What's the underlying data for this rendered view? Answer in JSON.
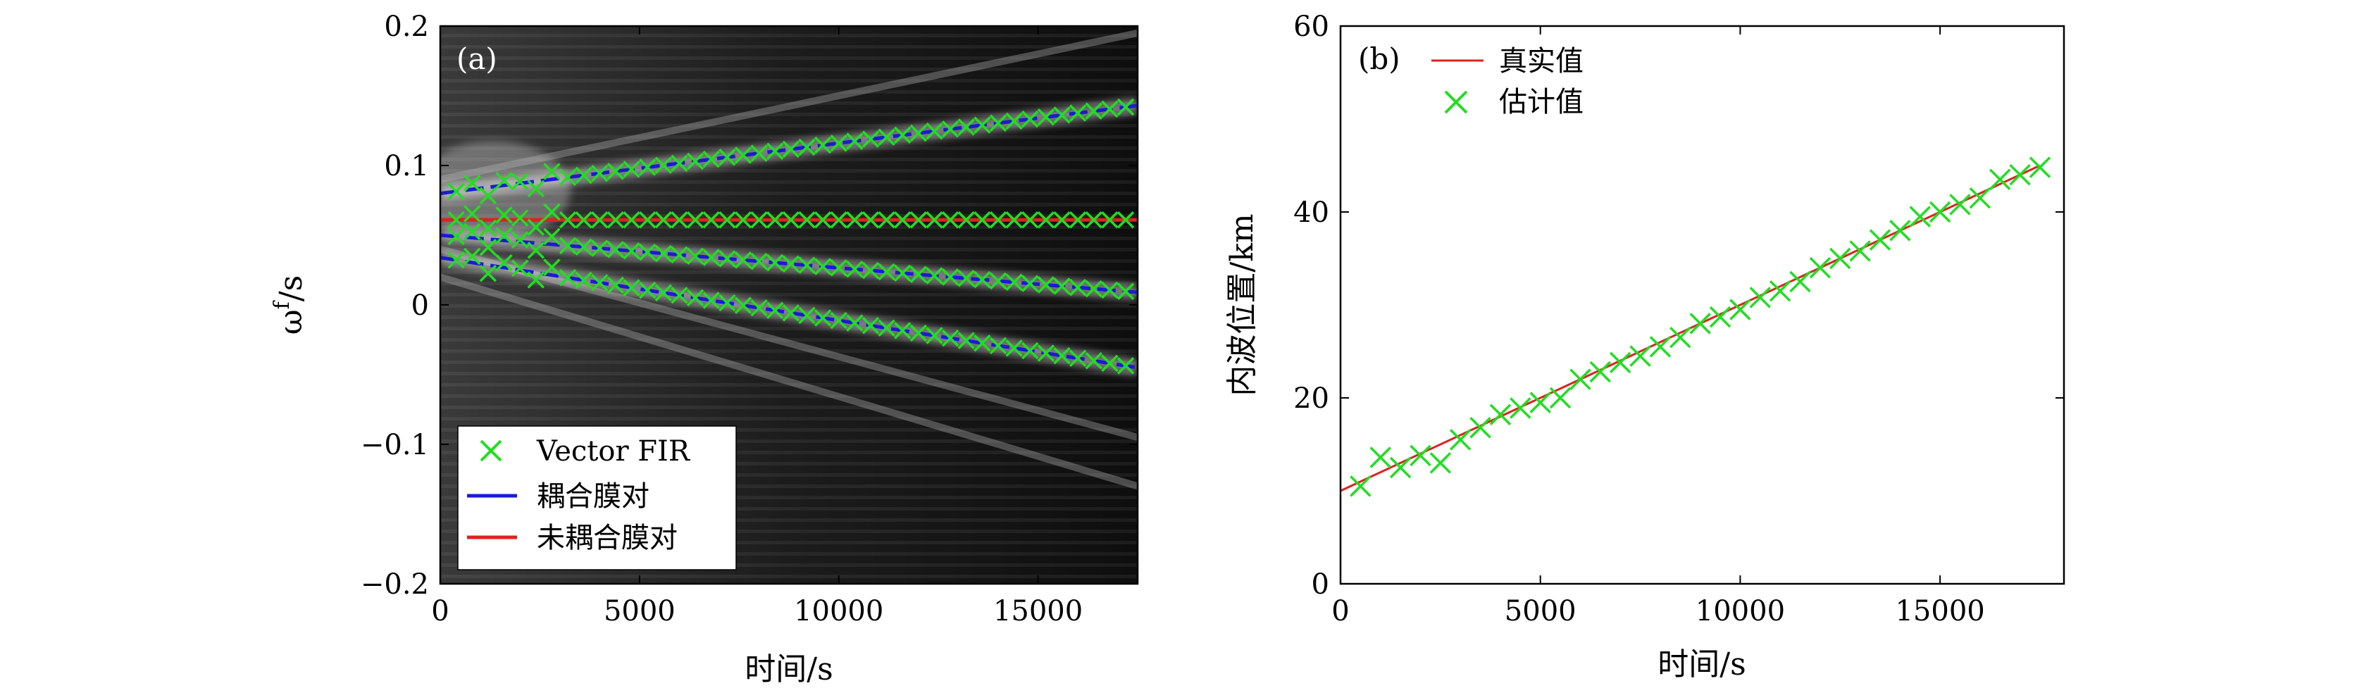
{
  "chart_data": [
    {
      "type": "heatmap",
      "panel_label": "(a)",
      "xlabel": "时间/s",
      "ylabel_main": "ω",
      "ylabel_sup": "f",
      "ylabel_tail": "/s",
      "xlim": [
        0,
        17500
      ],
      "ylim": [
        -0.2,
        0.2
      ],
      "xticks": [
        0,
        5000,
        10000,
        15000
      ],
      "yticks": [
        -0.2,
        -0.1,
        0,
        0.1,
        0.2
      ],
      "ytick_labels": [
        "−0.2",
        "−0.1",
        "0",
        "0.1",
        "0.2"
      ],
      "legend": {
        "position": "bottom-left",
        "entries": [
          {
            "label": "Vector FIR",
            "marker": "x",
            "color": "#22dd22"
          },
          {
            "label": "耦合膜对",
            "line": "solid",
            "color": "#1a1ad6"
          },
          {
            "label": "未耦合膜对",
            "line": "solid",
            "color": "#dd2222"
          }
        ]
      },
      "series": [
        {
          "name": "耦合膜对 mode 1",
          "color": "#1a1ad6",
          "style": "dashed",
          "x": [
            0,
            17500
          ],
          "y": [
            0.08,
            0.143
          ]
        },
        {
          "name": "未耦合膜对",
          "color": "#dd2222",
          "style": "solid",
          "x": [
            0,
            17500
          ],
          "y": [
            0.061,
            0.061
          ]
        },
        {
          "name": "耦合膜对 mode 2",
          "color": "#1a1ad6",
          "style": "dashed",
          "x": [
            0,
            17500
          ],
          "y": [
            0.05,
            0.009
          ]
        },
        {
          "name": "耦合膜对 mode 3",
          "color": "#1a1ad6",
          "style": "dashed",
          "x": [
            0,
            17500
          ],
          "y": [
            0.034,
            -0.045
          ]
        }
      ],
      "background_ridges": [
        {
          "x": [
            0,
            17500
          ],
          "y": [
            0.09,
            0.195
          ]
        },
        {
          "x": [
            0,
            17500
          ],
          "y": [
            0.04,
            -0.095
          ]
        },
        {
          "x": [
            0,
            17500
          ],
          "y": [
            0.02,
            -0.13
          ]
        }
      ],
      "markers": {
        "name": "Vector FIR",
        "color": "#22dd22",
        "x_start": 400,
        "x_step": 400,
        "count": 43,
        "tracks": [
          {
            "y0": 0.08,
            "y1": 0.143
          },
          {
            "y0": 0.061,
            "y1": 0.061
          },
          {
            "y0": 0.05,
            "y1": 0.009
          },
          {
            "y0": 0.034,
            "y1": -0.045
          }
        ]
      }
    },
    {
      "type": "line",
      "panel_label": "(b)",
      "xlabel": "时间/s",
      "ylabel": "内波位置/km",
      "xlim": [
        0,
        17500
      ],
      "ylim": [
        0,
        60
      ],
      "xticks": [
        0,
        5000,
        10000,
        15000
      ],
      "yticks": [
        0,
        20,
        40,
        60
      ],
      "legend": {
        "position": "top-left",
        "entries": [
          {
            "label": "真实值",
            "line": "solid",
            "color": "#dd2222"
          },
          {
            "label": "估计值",
            "marker": "x",
            "color": "#22dd22"
          }
        ]
      },
      "series": [
        {
          "name": "真实值",
          "color": "#dd2222",
          "x": [
            0,
            17500
          ],
          "y": [
            10,
            45
          ]
        },
        {
          "name": "估计值",
          "color": "#22dd22",
          "marker": "x",
          "x": [
            500,
            1000,
            1500,
            2000,
            2500,
            3000,
            3500,
            4000,
            4500,
            5000,
            5500,
            6000,
            6500,
            7000,
            7500,
            8000,
            8500,
            9000,
            9500,
            10000,
            10500,
            11000,
            11500,
            12000,
            12500,
            13000,
            13500,
            14000,
            14500,
            15000,
            15500,
            16000,
            16500,
            17000,
            17500
          ],
          "y": [
            10.5,
            13.6,
            12.5,
            13.8,
            13.0,
            15.5,
            16.8,
            18.2,
            18.9,
            19.5,
            20.0,
            22.0,
            22.8,
            23.8,
            24.5,
            25.5,
            26.5,
            28.0,
            28.7,
            29.5,
            30.8,
            31.5,
            32.5,
            34.0,
            35.0,
            35.8,
            37.0,
            38.0,
            39.5,
            40.0,
            40.8,
            41.5,
            43.5,
            44.0,
            44.8
          ]
        }
      ]
    }
  ]
}
